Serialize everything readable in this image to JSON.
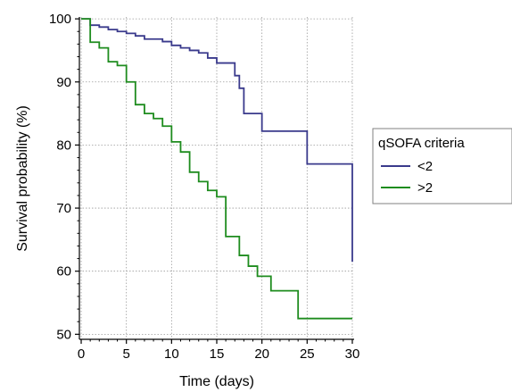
{
  "chart_data": {
    "type": "line",
    "step": true,
    "xlabel": "Time (days)",
    "ylabel": "Survival probability (%)",
    "xlim": [
      -0.2,
      30.2
    ],
    "ylim": [
      49.2,
      100.3
    ],
    "xticks": [
      0,
      5,
      10,
      15,
      20,
      25,
      30
    ],
    "yticks": [
      50,
      60,
      70,
      80,
      90,
      100
    ],
    "grid": true,
    "legend": {
      "title": "qSOFA criteria",
      "position": "right"
    },
    "series": [
      {
        "name": "<2",
        "color": "#3a3a8c",
        "points": [
          [
            0,
            100
          ],
          [
            1,
            99
          ],
          [
            2,
            98.7
          ],
          [
            3,
            98.3
          ],
          [
            4,
            98
          ],
          [
            5,
            97.7
          ],
          [
            6,
            97.3
          ],
          [
            7,
            96.8
          ],
          [
            9,
            96.4
          ],
          [
            10,
            95.8
          ],
          [
            11,
            95.4
          ],
          [
            12,
            95
          ],
          [
            13,
            94.6
          ],
          [
            14,
            93.8
          ],
          [
            15,
            93
          ],
          [
            16,
            93
          ],
          [
            17,
            91
          ],
          [
            17.5,
            89
          ],
          [
            18,
            85
          ],
          [
            20,
            82.2
          ],
          [
            25,
            77
          ],
          [
            30,
            61.5
          ]
        ]
      },
      {
        "name": ">2",
        "color": "#1e8c1e",
        "points": [
          [
            0,
            100
          ],
          [
            1,
            96.3
          ],
          [
            2,
            95.4
          ],
          [
            3,
            93.2
          ],
          [
            4,
            92.6
          ],
          [
            5,
            90
          ],
          [
            6,
            86.4
          ],
          [
            7,
            85
          ],
          [
            8,
            84.2
          ],
          [
            9,
            83
          ],
          [
            10,
            80.5
          ],
          [
            11,
            78.9
          ],
          [
            12,
            75.7
          ],
          [
            13,
            74.2
          ],
          [
            14,
            72.8
          ],
          [
            15,
            71.8
          ],
          [
            16,
            65.5
          ],
          [
            17.5,
            62.5
          ],
          [
            18.5,
            60.8
          ],
          [
            19.5,
            59.2
          ],
          [
            21,
            56.9
          ],
          [
            24,
            52.5
          ],
          [
            30,
            52.5
          ]
        ]
      }
    ]
  }
}
